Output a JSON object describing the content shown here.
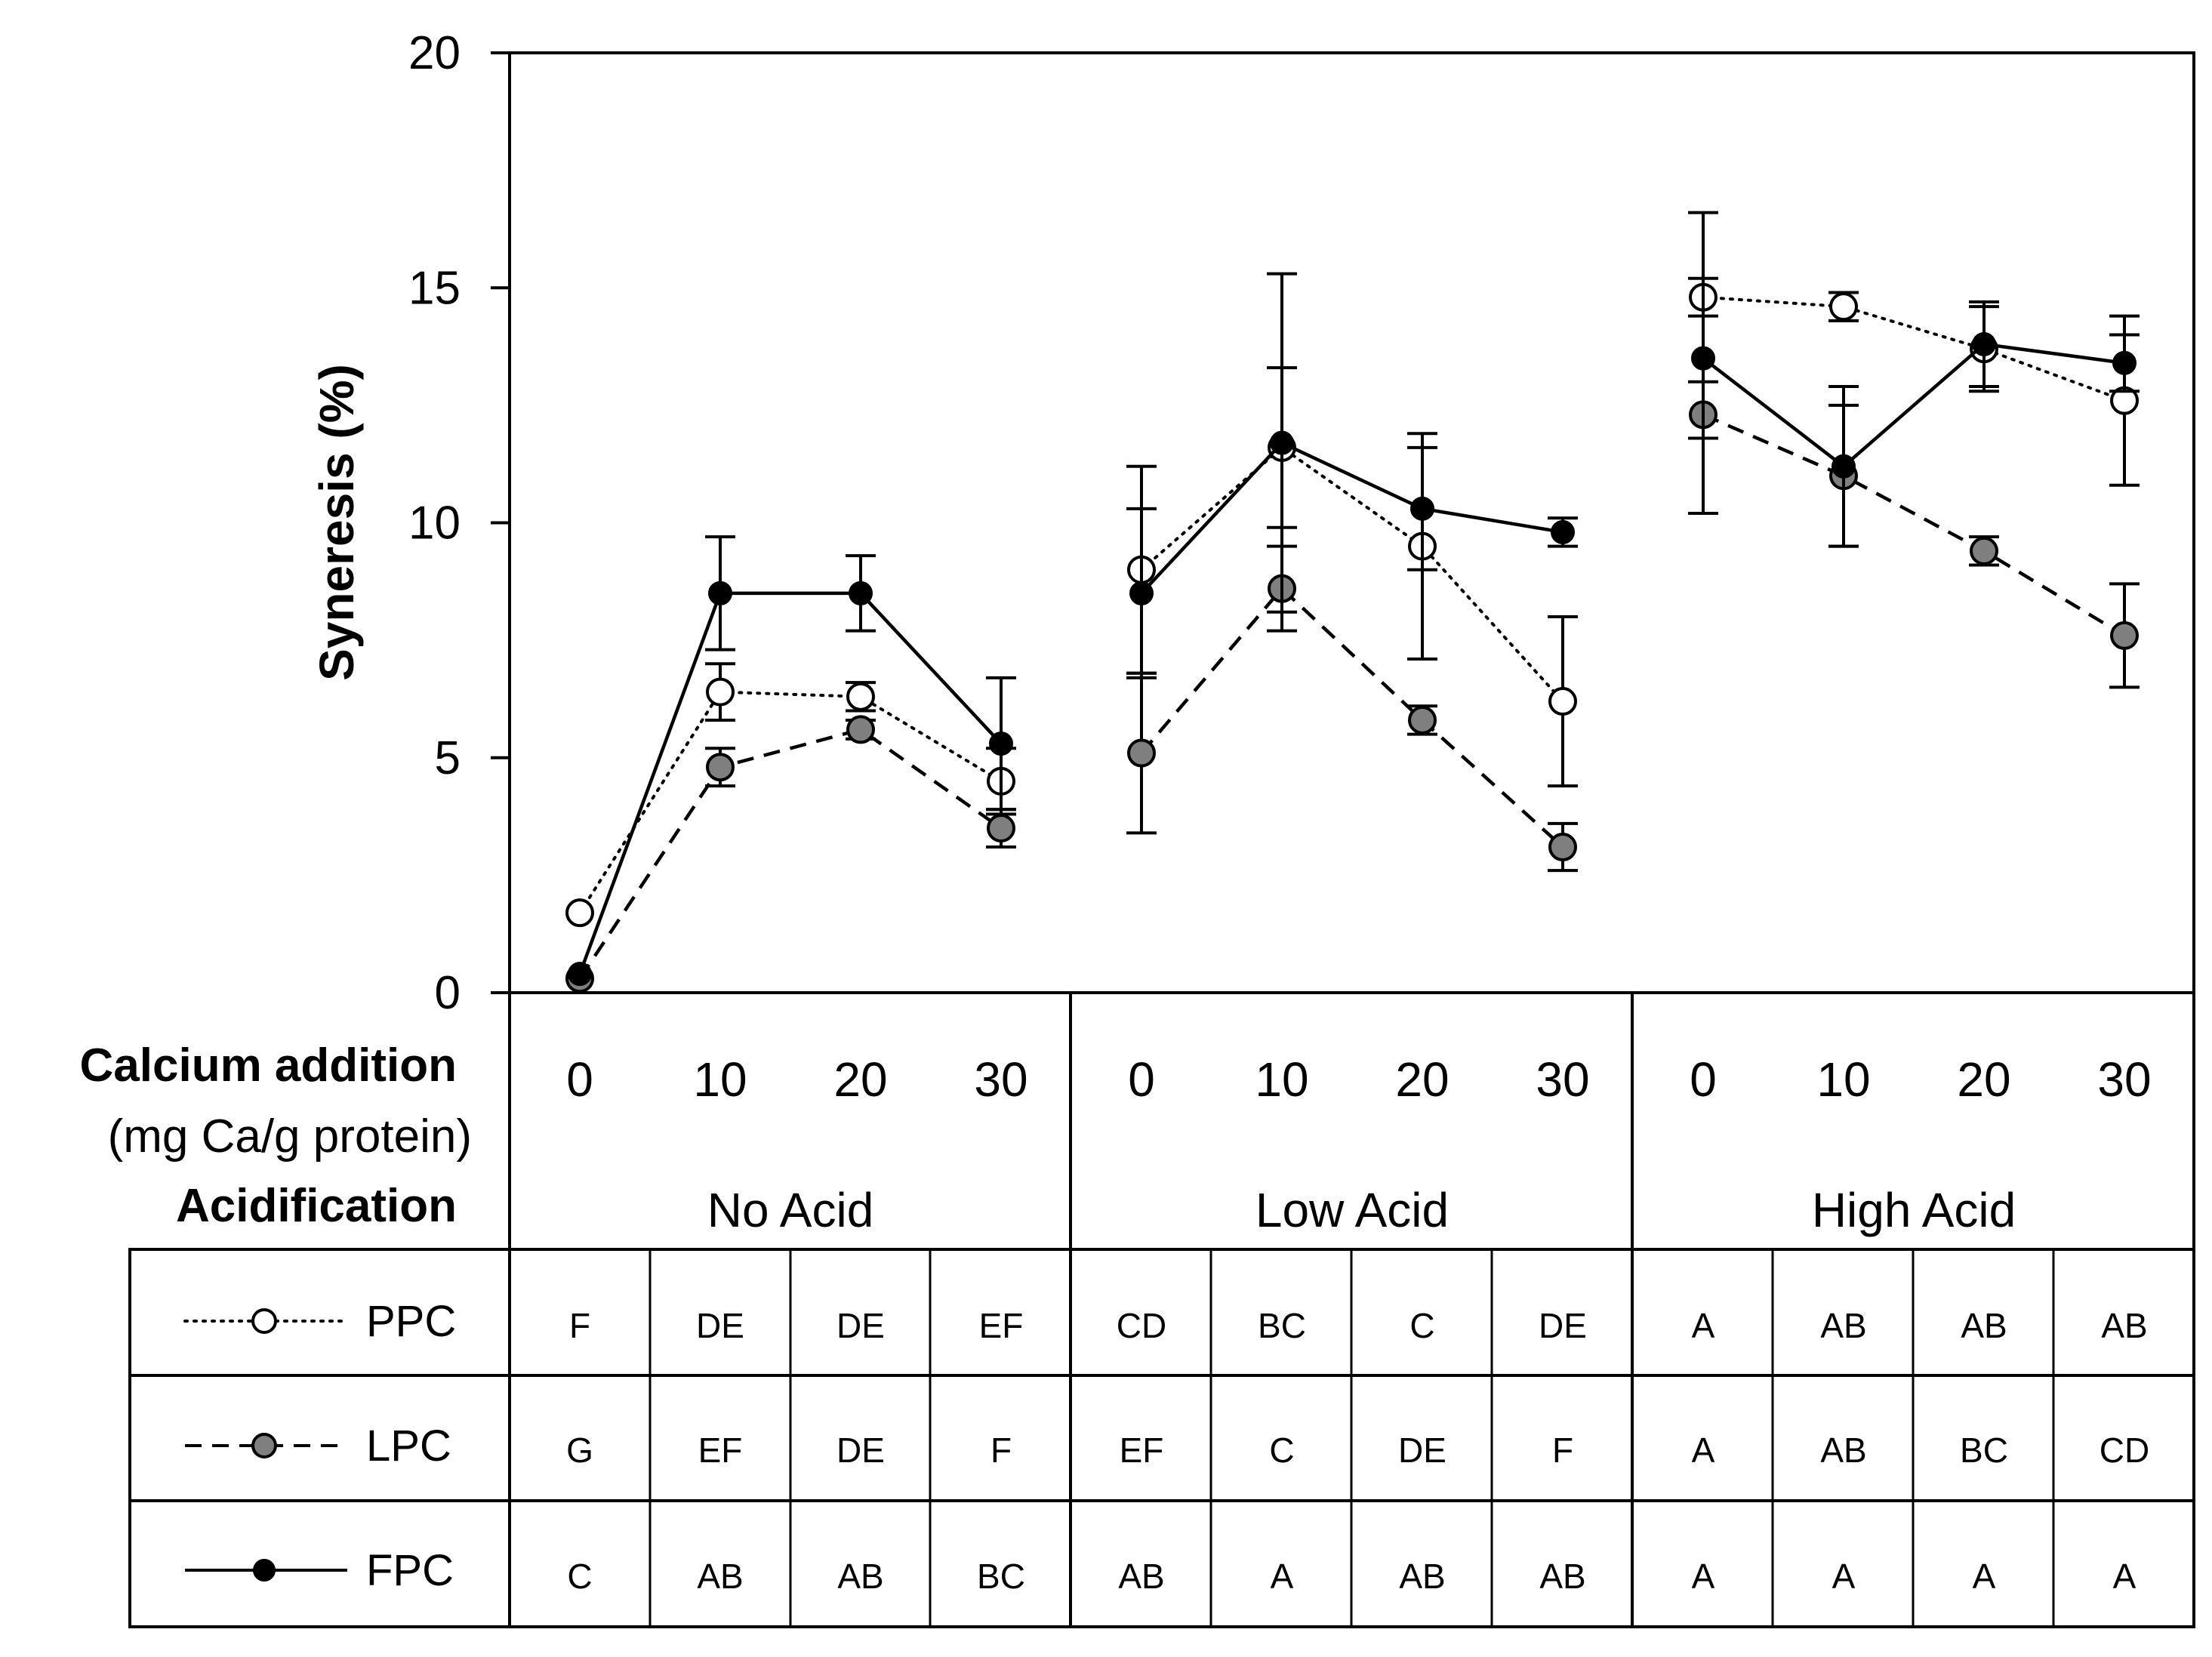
{
  "chart_data": {
    "type": "line",
    "ylabel": "Syneresis (%)",
    "ylim": [
      0,
      20
    ],
    "yticks": [
      "0",
      "5",
      "10",
      "15",
      "20"
    ],
    "row_labels": {
      "calcium_title": "Calcium addition",
      "calcium_unit": "(mg Ca/g protein)",
      "acid_title": "Acidification"
    },
    "groups": [
      "No Acid",
      "Low Acid",
      "High Acid"
    ],
    "categories": [
      "0",
      "10",
      "20",
      "30"
    ],
    "series": [
      {
        "name": "PPC",
        "style": "dotted",
        "marker_fill": "#ffffff",
        "values": [
          [
            1.7,
            6.4,
            6.3,
            4.5
          ],
          [
            9.0,
            11.6,
            9.5,
            6.2
          ],
          [
            14.8,
            14.6,
            13.7,
            12.6
          ]
        ],
        "errors": [
          [
            0,
            0.6,
            0.3,
            0.7
          ],
          [
            2.2,
            1.7,
            2.4,
            1.8
          ],
          [
            1.8,
            0.3,
            0.9,
            1.8
          ]
        ],
        "letters": [
          [
            "F",
            "DE",
            "DE",
            "EF"
          ],
          [
            "CD",
            "BC",
            "C",
            "DE"
          ],
          [
            "A",
            "AB",
            "AB",
            "AB"
          ]
        ]
      },
      {
        "name": "LPC",
        "style": "dashed",
        "marker_fill": "#7f7f7f",
        "values": [
          [
            0.3,
            4.8,
            5.6,
            3.5
          ],
          [
            5.1,
            8.6,
            5.8,
            3.1
          ],
          [
            12.3,
            11.0,
            9.4,
            7.6
          ]
        ],
        "errors": [
          [
            0,
            0.4,
            0.2,
            0.4
          ],
          [
            1.7,
            0.9,
            0.3,
            0.5
          ],
          [
            2.1,
            1.5,
            0.3,
            1.1
          ]
        ],
        "letters": [
          [
            "G",
            "EF",
            "DE",
            "F"
          ],
          [
            "EF",
            "C",
            "DE",
            "F"
          ],
          [
            "A",
            "AB",
            "BC",
            "CD"
          ]
        ]
      },
      {
        "name": "FPC",
        "style": "solid",
        "marker_fill": "#000000",
        "values": [
          [
            0.4,
            8.5,
            8.5,
            5.3
          ],
          [
            8.5,
            11.7,
            10.3,
            9.8
          ],
          [
            13.5,
            11.2,
            13.8,
            13.4
          ]
        ],
        "errors": [
          [
            0,
            1.2,
            0.8,
            1.4
          ],
          [
            1.8,
            3.6,
            1.3,
            0.3
          ],
          [
            1.7,
            1.7,
            0.9,
            0.6
          ]
        ],
        "letters": [
          [
            "C",
            "AB",
            "AB",
            "BC"
          ],
          [
            "AB",
            "A",
            "AB",
            "AB"
          ],
          [
            "A",
            "A",
            "A",
            "A"
          ]
        ]
      }
    ]
  }
}
